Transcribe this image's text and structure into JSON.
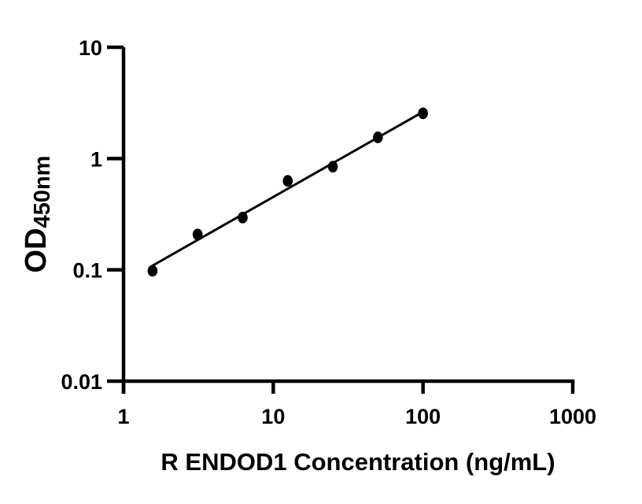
{
  "figure": {
    "background_color": "#ffffff"
  },
  "chart_data": {
    "type": "scatter",
    "title": "",
    "xlabel": "R ENDOD1 Concentration (ng/mL)",
    "ylabel_main": "OD",
    "ylabel_sub": "450nm",
    "x_scale": "log",
    "y_scale": "log",
    "xlim": [
      1,
      1000
    ],
    "ylim": [
      0.01,
      10
    ],
    "x_ticks": [
      1,
      10,
      100,
      1000
    ],
    "y_ticks": [
      10,
      1,
      0.1,
      0.01
    ],
    "grid": false,
    "legend": false,
    "points": [
      {
        "x": 1.5625,
        "y": 0.098
      },
      {
        "x": 3.125,
        "y": 0.208
      },
      {
        "x": 6.25,
        "y": 0.295
      },
      {
        "x": 12.5,
        "y": 0.63
      },
      {
        "x": 25,
        "y": 0.845
      },
      {
        "x": 50,
        "y": 1.55
      },
      {
        "x": 100,
        "y": 2.55
      }
    ],
    "trendline": "linear least-squares fit in log-log space, drawn from first to last point",
    "marker_color": "#000000",
    "line_color": "#000000",
    "axis_color": "#000000"
  }
}
